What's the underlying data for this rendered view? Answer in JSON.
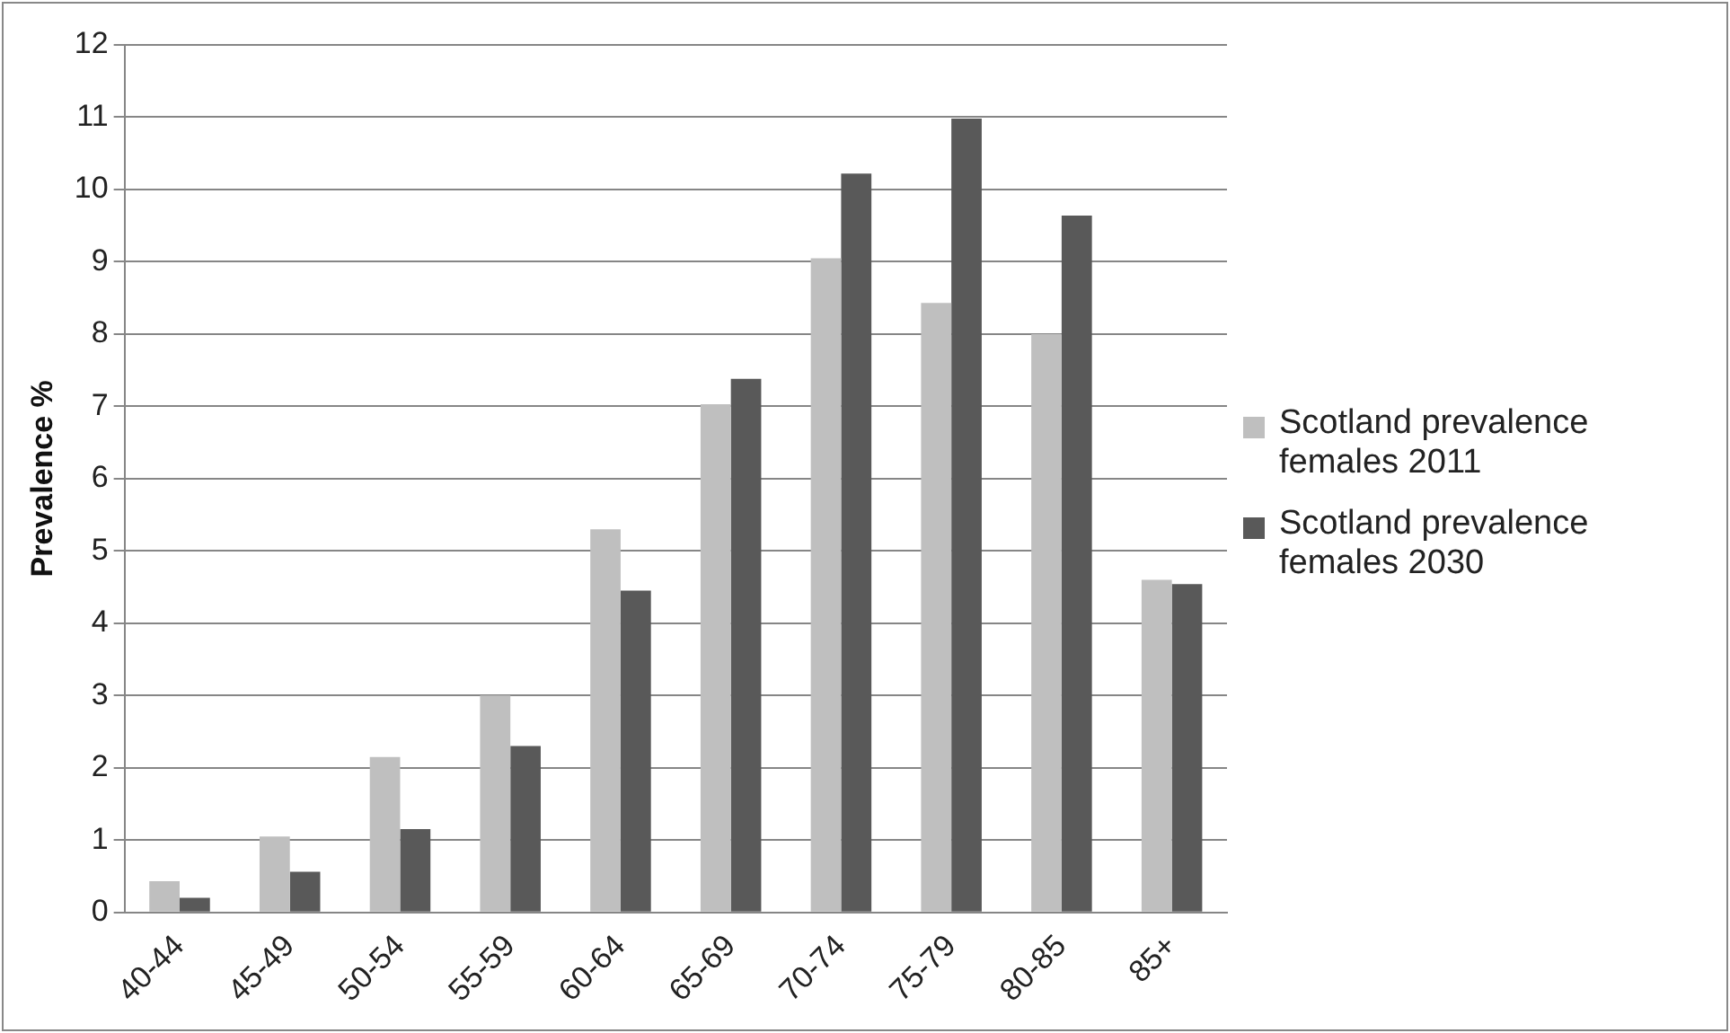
{
  "chart_data": {
    "type": "bar",
    "ylabel": "Prevalence %",
    "categories": [
      "40-44",
      "45-49",
      "50-54",
      "55-59",
      "60-64",
      "65-69",
      "70-74",
      "75-79",
      "80-85",
      "85+"
    ],
    "series": [
      {
        "name": "Scotland prevalence females 2011",
        "color": "#bfbfbf",
        "values": [
          0.43,
          1.05,
          2.15,
          3.0,
          5.3,
          7.03,
          9.05,
          8.43,
          8.0,
          4.6
        ]
      },
      {
        "name": "Scotland prevalence females 2030",
        "color": "#595959",
        "values": [
          0.2,
          0.56,
          1.15,
          2.3,
          4.45,
          7.38,
          10.22,
          10.98,
          9.64,
          4.54
        ]
      }
    ],
    "ylim": [
      0,
      12
    ],
    "yticks": [
      0,
      1,
      2,
      3,
      4,
      5,
      6,
      7,
      8,
      9,
      10,
      11,
      12
    ],
    "grid": "y",
    "legend": "right"
  }
}
